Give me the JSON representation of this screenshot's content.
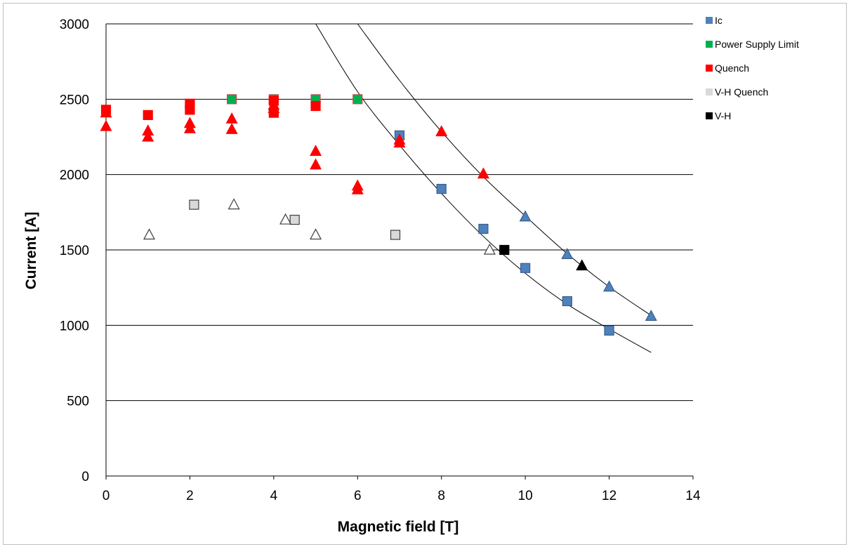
{
  "chart_data": {
    "type": "scatter",
    "title": "",
    "xlabel": "Magnetic field [T]",
    "ylabel": "Current [A]",
    "xlim": [
      0,
      14
    ],
    "ylim": [
      0,
      3000
    ],
    "x_ticks": [
      "0",
      "2",
      "4",
      "6",
      "8",
      "10",
      "12",
      "14"
    ],
    "y_ticks": [
      "0",
      "500",
      "1000",
      "1500",
      "2000",
      "2500",
      "3000"
    ],
    "grid": "horizontal",
    "legend_position": "right",
    "legend": [
      {
        "label": "Ic",
        "color": "#4f81bd",
        "marker": "square"
      },
      {
        "label": "Power Supply Limit",
        "color": "#00b050",
        "marker": "square"
      },
      {
        "label": "Quench",
        "color": "#ff0000",
        "marker": "square"
      },
      {
        "label": "V-H Quench",
        "color": "#d9d9d9",
        "marker": "square"
      },
      {
        "label": "V-H",
        "color": "#000000",
        "marker": "square"
      }
    ],
    "series": [
      {
        "name": "Ic",
        "marker": "square",
        "color": "#4f81bd",
        "points": [
          [
            7,
            2260
          ],
          [
            8,
            1905
          ],
          [
            9,
            1640
          ],
          [
            10,
            1380
          ],
          [
            11,
            1160
          ],
          [
            12,
            965
          ]
        ]
      },
      {
        "name": "Ic",
        "marker": "triangle",
        "color": "#4f81bd",
        "points": [
          [
            10,
            1720
          ],
          [
            11,
            1470
          ],
          [
            12,
            1255
          ],
          [
            13,
            1060
          ]
        ]
      },
      {
        "name": "Power Supply Limit",
        "marker": "square",
        "color": "#00b050",
        "points": [
          [
            3,
            2500
          ],
          [
            4,
            2500
          ],
          [
            5,
            2500
          ],
          [
            6,
            2500
          ]
        ]
      },
      {
        "name": "Quench",
        "marker": "square",
        "color": "#ff0000",
        "points": [
          [
            0,
            2430
          ],
          [
            1,
            2395
          ],
          [
            2,
            2470
          ],
          [
            2,
            2430
          ],
          [
            4,
            2490
          ],
          [
            4,
            2410
          ],
          [
            5,
            2455
          ]
        ]
      },
      {
        "name": "Quench",
        "marker": "triangle",
        "color": "#ff0000",
        "points": [
          [
            0,
            2410
          ],
          [
            0,
            2320
          ],
          [
            1,
            2290
          ],
          [
            1,
            2250
          ],
          [
            2,
            2340
          ],
          [
            2,
            2305
          ],
          [
            3,
            2370
          ],
          [
            3,
            2300
          ],
          [
            4,
            2460
          ],
          [
            4,
            2440
          ],
          [
            5,
            2155
          ],
          [
            5,
            2065
          ],
          [
            6,
            1925
          ],
          [
            6,
            1900
          ],
          [
            7,
            2230
          ],
          [
            7,
            2210
          ],
          [
            8,
            2285
          ],
          [
            9,
            2005
          ]
        ]
      },
      {
        "name": "V-H Quench",
        "marker": "square",
        "color": "#d9d9d9",
        "points": [
          [
            2.1,
            1800
          ],
          [
            4.5,
            1700
          ],
          [
            6.9,
            1600
          ]
        ]
      },
      {
        "name": "V-H Quench",
        "marker": "triangle",
        "color": "#ffffff",
        "points": [
          [
            1.03,
            1600
          ],
          [
            3.05,
            1800
          ],
          [
            4.28,
            1700
          ],
          [
            5.0,
            1600
          ],
          [
            9.15,
            1500
          ]
        ]
      },
      {
        "name": "V-H",
        "marker": "square",
        "color": "#000000",
        "points": [
          [
            9.5,
            1500
          ]
        ]
      },
      {
        "name": "V-H",
        "marker": "triangle",
        "color": "#000000",
        "points": [
          [
            11.35,
            1395
          ]
        ]
      }
    ],
    "curves": [
      {
        "color": "#000000",
        "points": [
          [
            5.0,
            3000
          ],
          [
            6,
            2550
          ],
          [
            7,
            2195
          ],
          [
            8,
            1875
          ],
          [
            9,
            1590
          ],
          [
            10,
            1345
          ],
          [
            11,
            1140
          ],
          [
            12,
            975
          ],
          [
            13,
            820
          ]
        ]
      },
      {
        "color": "#000000",
        "points": [
          [
            6.0,
            3000
          ],
          [
            7,
            2625
          ],
          [
            8,
            2285
          ],
          [
            9,
            1985
          ],
          [
            10,
            1725
          ],
          [
            11,
            1475
          ],
          [
            12,
            1255
          ],
          [
            13,
            1065
          ]
        ]
      }
    ]
  }
}
